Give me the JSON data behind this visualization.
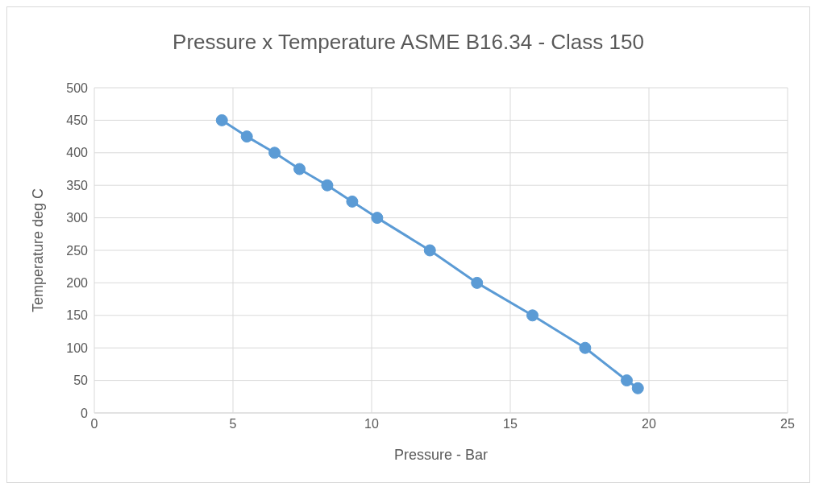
{
  "chart_data": {
    "type": "line",
    "title": "Pressure x Temperature ASME B16.34 - Class 150",
    "xlabel": "Pressure - Bar",
    "ylabel": "Temperature deg C",
    "x": [
      4.6,
      5.5,
      6.5,
      7.4,
      8.4,
      9.3,
      10.2,
      12.1,
      13.8,
      15.8,
      17.7,
      19.2,
      19.6
    ],
    "series": [
      {
        "color": "#5b9bd5",
        "values": [
          450,
          425,
          400,
          375,
          350,
          325,
          300,
          250,
          200,
          150,
          100,
          50,
          38
        ]
      }
    ],
    "xlim": [
      0,
      25
    ],
    "xticks": [
      0,
      5,
      10,
      15,
      20,
      25
    ],
    "ylim": [
      0,
      500
    ],
    "yticks": [
      0,
      50,
      100,
      150,
      200,
      250,
      300,
      350,
      400,
      450,
      500
    ],
    "grid": true,
    "marker": "circle",
    "line_style": "solid"
  }
}
